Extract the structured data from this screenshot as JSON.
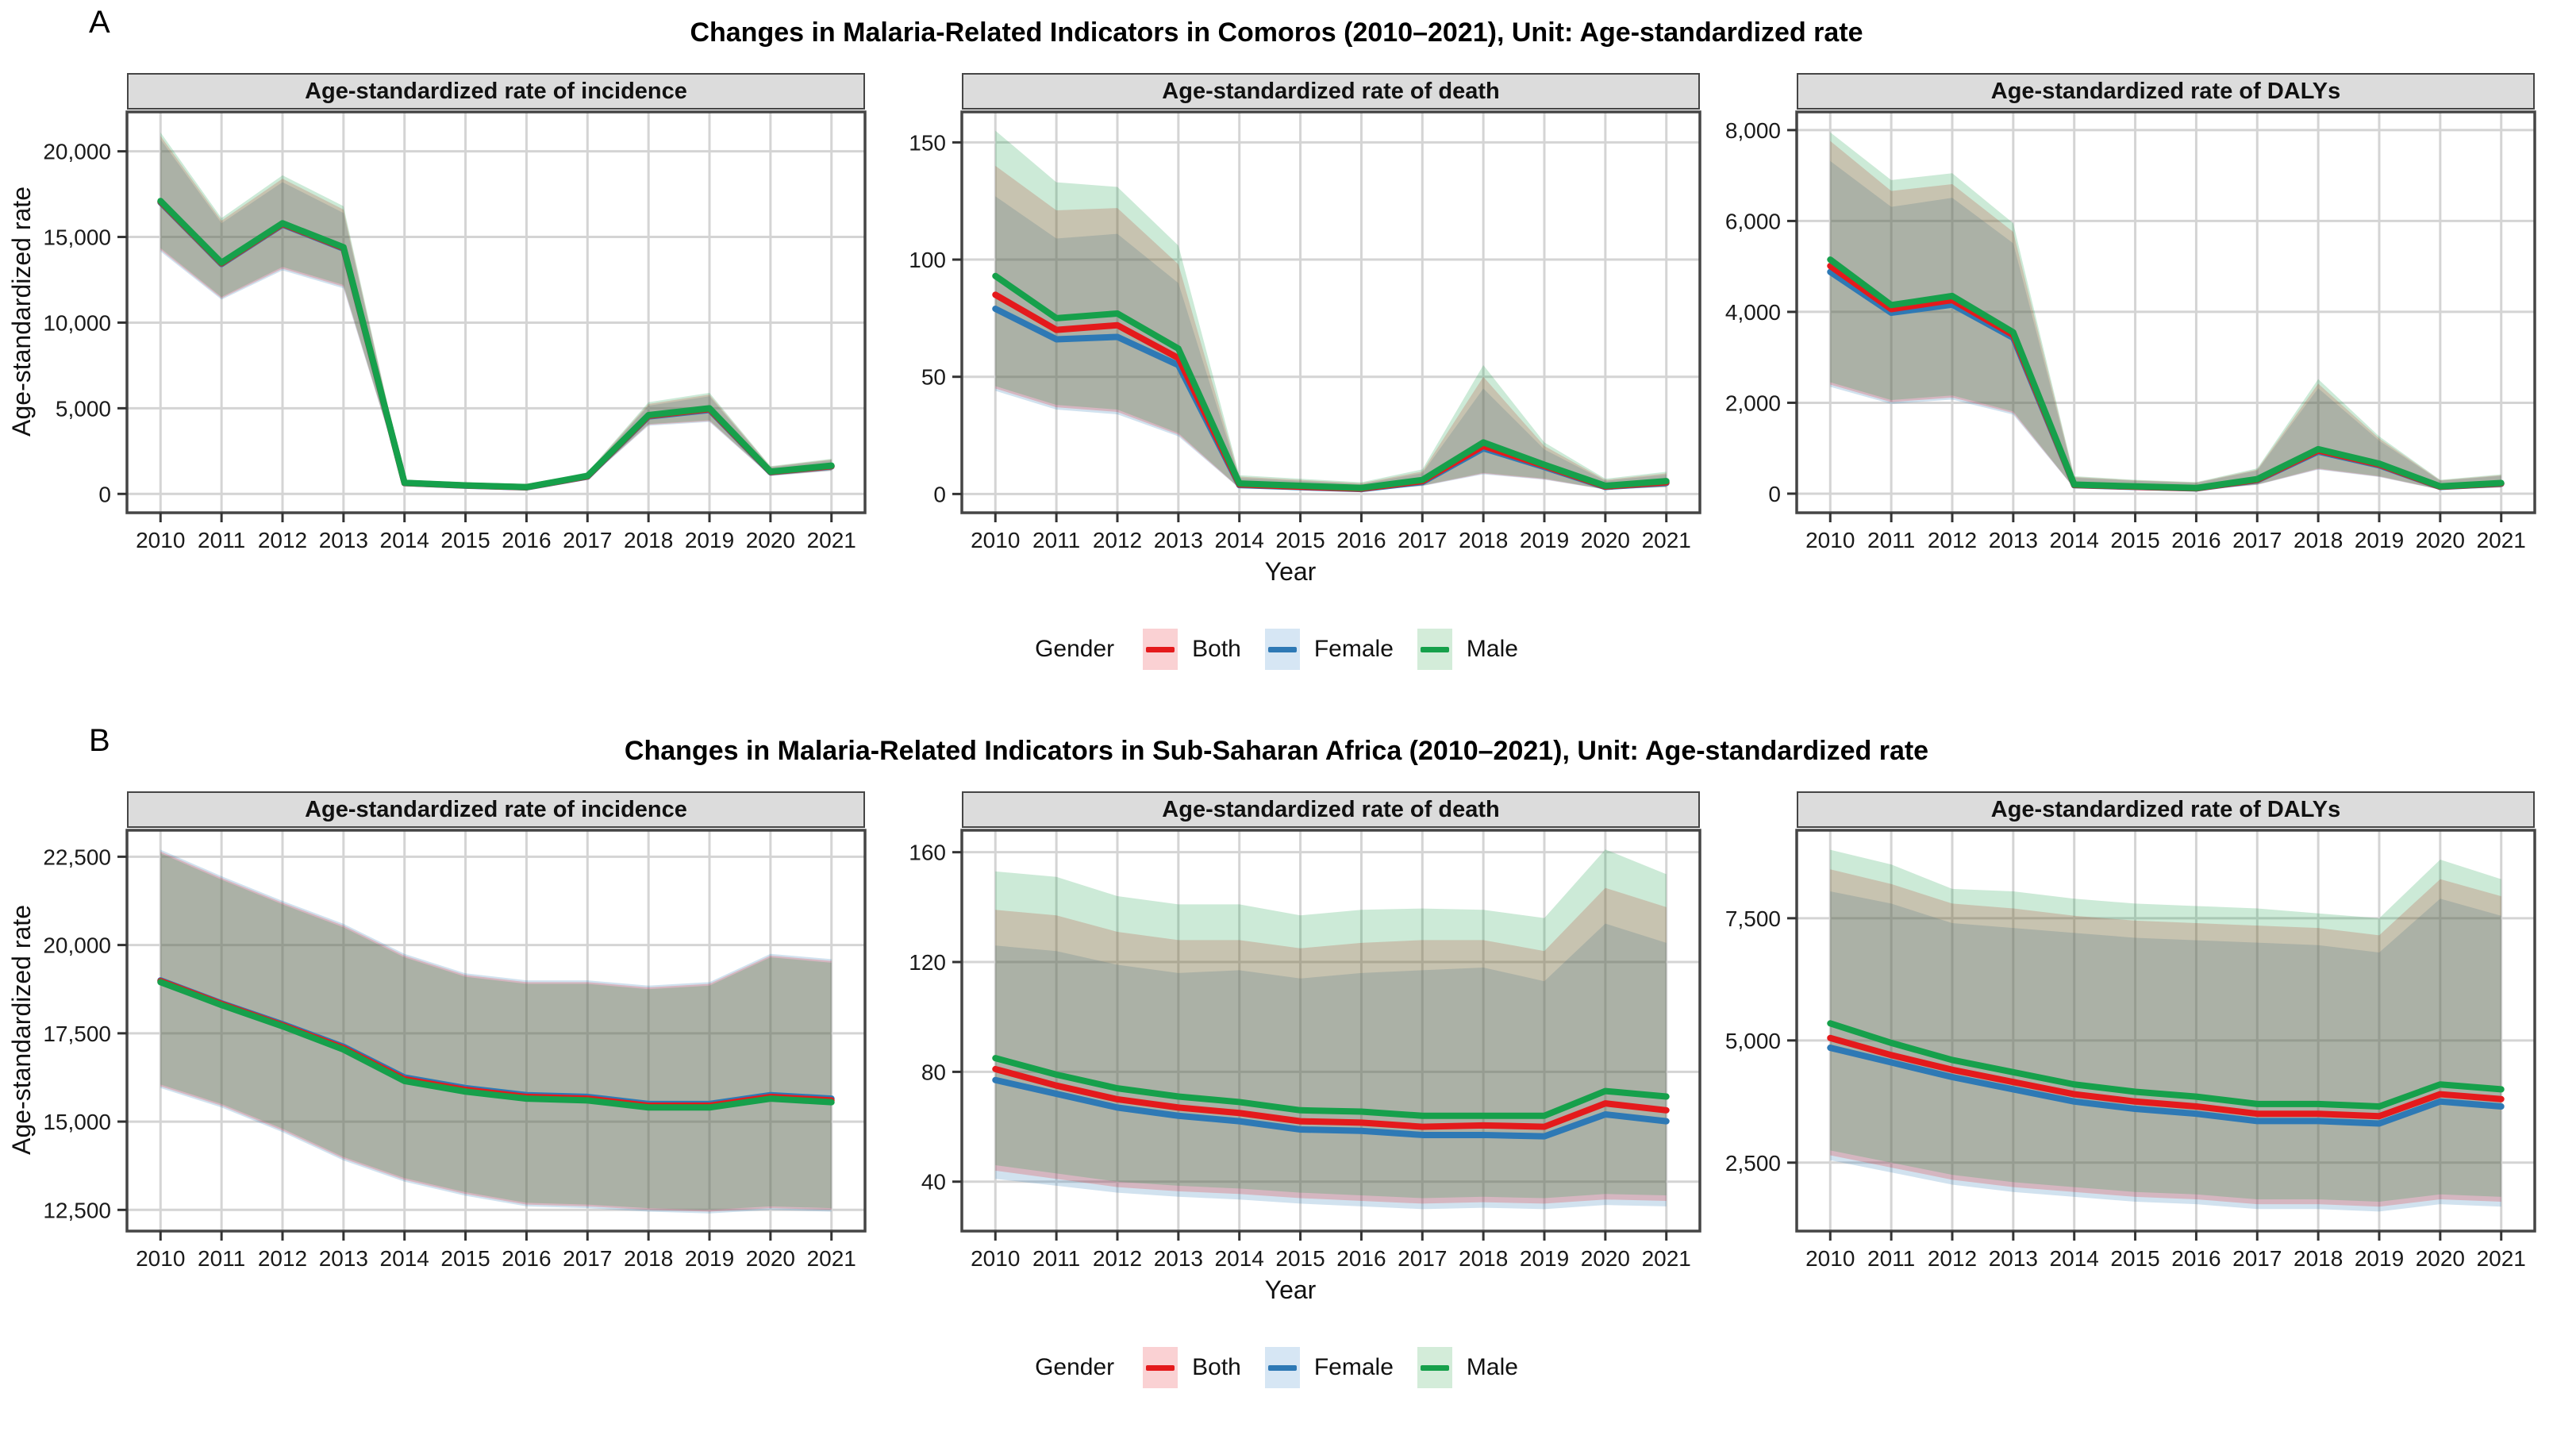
{
  "colors": {
    "both": {
      "line": "#e41a1c",
      "band": "#fad1d3"
    },
    "female": {
      "line": "#2e79b5",
      "band": "#d6e6f4"
    },
    "male": {
      "line": "#16a04b",
      "band": "#d3ecd9"
    },
    "strip_bg": "#dcdcdc",
    "grid": "#d4d4d4",
    "panel_border": "#454545"
  },
  "panels": [
    {
      "label": "A",
      "title": "Changes in Malaria-Related Indicators in Comoros (2010–2021), Unit: Age-standardized rate",
      "ylabel": "Age-standardized rate",
      "xlabel": "Year",
      "legend": {
        "title": "Gender",
        "items": [
          {
            "key": "both",
            "label": "Both"
          },
          {
            "key": "female",
            "label": "Female"
          },
          {
            "key": "male",
            "label": "Male"
          }
        ]
      }
    },
    {
      "label": "B",
      "title": "Changes in Malaria-Related Indicators in Sub-Saharan Africa (2010–2021), Unit: Age-standardized rate",
      "ylabel": "Age-standardized rate",
      "xlabel": "Year",
      "legend": {
        "title": "Gender",
        "items": [
          {
            "key": "both",
            "label": "Both"
          },
          {
            "key": "female",
            "label": "Female"
          },
          {
            "key": "male",
            "label": "Male"
          }
        ]
      }
    }
  ],
  "chart_data": [
    {
      "type": "line",
      "panel": "A",
      "title": "Age-standardized rate of incidence",
      "x": [
        2010,
        2011,
        2012,
        2013,
        2014,
        2015,
        2016,
        2017,
        2018,
        2019,
        2020,
        2021
      ],
      "xlim": [
        2009.45,
        2021.55
      ],
      "ylim": [
        -1100,
        22300
      ],
      "yticks": {
        "values": [
          0,
          5000,
          10000,
          15000,
          20000
        ],
        "labels": [
          "0",
          "5,000",
          "10,000",
          "15,000",
          "20,000"
        ]
      },
      "series": [
        {
          "name": "Female",
          "key": "female",
          "values": [
            17020,
            13420,
            15720,
            14320,
            630,
            480,
            380,
            1010,
            4520,
            4900,
            1260,
            1600
          ],
          "lower": [
            14150,
            11340,
            13050,
            12000,
            500,
            385,
            287,
            820,
            3980,
            4200,
            1040,
            1340
          ],
          "upper": [
            20700,
            15800,
            18200,
            16400,
            780,
            605,
            500,
            1210,
            5150,
            5700,
            1560,
            1970
          ]
        },
        {
          "name": "Both",
          "key": "both",
          "values": [
            17060,
            13460,
            15760,
            14360,
            640,
            490,
            390,
            1030,
            4560,
            4950,
            1280,
            1620
          ],
          "lower": [
            14250,
            11420,
            13150,
            12100,
            510,
            392,
            293,
            835,
            4030,
            4250,
            1060,
            1360
          ],
          "upper": [
            20900,
            15950,
            18400,
            16600,
            800,
            620,
            515,
            1240,
            5250,
            5800,
            1590,
            2010
          ]
        },
        {
          "name": "Male",
          "key": "male",
          "values": [
            17100,
            13500,
            15800,
            14400,
            650,
            500,
            400,
            1050,
            4600,
            5000,
            1300,
            1650
          ],
          "lower": [
            14350,
            11500,
            13250,
            12200,
            520,
            400,
            300,
            850,
            4080,
            4300,
            1080,
            1380
          ],
          "upper": [
            21100,
            16100,
            18600,
            16800,
            820,
            640,
            530,
            1270,
            5350,
            5900,
            1620,
            2050
          ]
        }
      ]
    },
    {
      "type": "line",
      "panel": "A",
      "title": "Age-standardized rate of death",
      "x": [
        2010,
        2011,
        2012,
        2013,
        2014,
        2015,
        2016,
        2017,
        2018,
        2019,
        2020,
        2021
      ],
      "xlim": [
        2009.45,
        2021.55
      ],
      "ylim": [
        -8,
        163
      ],
      "yticks": {
        "values": [
          0,
          50,
          100,
          150
        ],
        "labels": [
          "0",
          "50",
          "100",
          "150"
        ]
      },
      "series": [
        {
          "name": "Female",
          "key": "female",
          "values": [
            79,
            66,
            67,
            55,
            3.8,
            2.9,
            2.1,
            5.1,
            19.5,
            11.5,
            3,
            4.7
          ],
          "lower": [
            44,
            36,
            34,
            24.6,
            2.4,
            1.85,
            1.4,
            3.4,
            8.4,
            6.1,
            1.9,
            2.9
          ],
          "upper": [
            127,
            109,
            111,
            90,
            6.8,
            5.6,
            4.2,
            8.9,
            45,
            19,
            5.6,
            8.2
          ]
        },
        {
          "name": "Both",
          "key": "both",
          "values": [
            85,
            70,
            72,
            58,
            4.1,
            3.1,
            2.3,
            5.5,
            20.5,
            12,
            3.2,
            5
          ],
          "lower": [
            45,
            37,
            35,
            25.3,
            2.5,
            1.9,
            1.45,
            3.5,
            8.7,
            6.3,
            1.95,
            3
          ],
          "upper": [
            140,
            121,
            122,
            98,
            7.4,
            6,
            4.6,
            9.6,
            50,
            20.5,
            6,
            8.8
          ]
        },
        {
          "name": "Male",
          "key": "male",
          "values": [
            93,
            75,
            77,
            62,
            4.5,
            3.5,
            2.6,
            6,
            22,
            12.5,
            3.5,
            5.5
          ],
          "lower": [
            46,
            38,
            36,
            26,
            2.6,
            2,
            1.5,
            3.6,
            9,
            6.6,
            2,
            3.1
          ],
          "upper": [
            155,
            133,
            131,
            106,
            8,
            6.5,
            5,
            10.5,
            55,
            22,
            6.5,
            9.5
          ]
        }
      ]
    },
    {
      "type": "line",
      "panel": "A",
      "title": "Age-standardized rate of DALYs",
      "x": [
        2010,
        2011,
        2012,
        2013,
        2014,
        2015,
        2016,
        2017,
        2018,
        2019,
        2020,
        2021
      ],
      "xlim": [
        2009.45,
        2021.55
      ],
      "ylim": [
        -420,
        8400
      ],
      "yticks": {
        "values": [
          0,
          2000,
          4000,
          6000,
          8000
        ],
        "labels": [
          "0",
          "2,000",
          "4,000",
          "6,000",
          "8,000"
        ]
      },
      "series": [
        {
          "name": "Female",
          "key": "female",
          "values": [
            4880,
            3980,
            4160,
            3430,
            186,
            148,
            114,
            293,
            925,
            622,
            148,
            218
          ],
          "lower": [
            2350,
            1975,
            2070,
            1740,
            116,
            91,
            73,
            193,
            527,
            366,
            87,
            135
          ],
          "upper": [
            7320,
            6310,
            6510,
            5510,
            350,
            282,
            236,
            508,
            2320,
            1165,
            282,
            392
          ]
        },
        {
          "name": "Both",
          "key": "both",
          "values": [
            5010,
            4060,
            4260,
            3490,
            192,
            153,
            119,
            305,
            950,
            640,
            153,
            225
          ],
          "lower": [
            2400,
            2015,
            2115,
            1775,
            119,
            93,
            75,
            198,
            540,
            375,
            89,
            138
          ],
          "upper": [
            7760,
            6660,
            6810,
            5760,
            368,
            293,
            245,
            530,
            2420,
            1215,
            293,
            408
          ]
        },
        {
          "name": "Male",
          "key": "male",
          "values": [
            5150,
            4150,
            4350,
            3550,
            200,
            160,
            125,
            320,
            980,
            660,
            160,
            235
          ],
          "lower": [
            2450,
            2060,
            2160,
            1810,
            122,
            96,
            77,
            203,
            555,
            385,
            92,
            142
          ],
          "upper": [
            7950,
            6900,
            7050,
            5950,
            385,
            305,
            255,
            555,
            2520,
            1260,
            305,
            425
          ]
        }
      ]
    },
    {
      "type": "line",
      "panel": "B",
      "title": "Age-standardized rate of incidence",
      "x": [
        2010,
        2011,
        2012,
        2013,
        2014,
        2015,
        2016,
        2017,
        2018,
        2019,
        2020,
        2021
      ],
      "xlim": [
        2009.45,
        2021.55
      ],
      "ylim": [
        11900,
        23250
      ],
      "yticks": {
        "values": [
          12500,
          15000,
          17500,
          20000,
          22500
        ],
        "labels": [
          "12,500",
          "15,000",
          "17,500",
          "20,000",
          "22,500"
        ]
      },
      "series": [
        {
          "name": "Female",
          "key": "female",
          "values": [
            19000,
            18350,
            17760,
            17120,
            16250,
            15950,
            15750,
            15700,
            15500,
            15500,
            15750,
            15650
          ],
          "lower": [
            15950,
            15400,
            14700,
            13900,
            13300,
            12900,
            12600,
            12550,
            12450,
            12400,
            12500,
            12450
          ],
          "upper": [
            22700,
            21950,
            21250,
            20600,
            19750,
            19200,
            19000,
            19000,
            18850,
            18950,
            19750,
            19600
          ]
        },
        {
          "name": "Both",
          "key": "both",
          "values": [
            18980,
            18330,
            17730,
            17080,
            16200,
            15900,
            15700,
            15650,
            15450,
            15450,
            15700,
            15600
          ],
          "lower": [
            16000,
            15450,
            14750,
            13950,
            13350,
            12950,
            12650,
            12600,
            12500,
            12450,
            12550,
            12500
          ],
          "upper": [
            22650,
            21900,
            21200,
            20550,
            19700,
            19150,
            18950,
            18950,
            18800,
            18900,
            19700,
            19550
          ]
        },
        {
          "name": "Male",
          "key": "male",
          "values": [
            18950,
            18300,
            17700,
            17040,
            16150,
            15850,
            15650,
            15600,
            15400,
            15400,
            15650,
            15550
          ],
          "lower": [
            16050,
            15500,
            14800,
            14000,
            13400,
            13000,
            12700,
            12650,
            12550,
            12500,
            12600,
            12550
          ],
          "upper": [
            22600,
            21850,
            21150,
            20500,
            19650,
            19100,
            18900,
            18900,
            18750,
            18850,
            19650,
            19500
          ]
        }
      ]
    },
    {
      "type": "line",
      "panel": "B",
      "title": "Age-standardized rate of death",
      "x": [
        2010,
        2011,
        2012,
        2013,
        2014,
        2015,
        2016,
        2017,
        2018,
        2019,
        2020,
        2021
      ],
      "xlim": [
        2009.45,
        2021.55
      ],
      "ylim": [
        22,
        168
      ],
      "yticks": {
        "values": [
          40,
          80,
          120,
          160
        ],
        "labels": [
          "40",
          "80",
          "120",
          "160"
        ]
      },
      "series": [
        {
          "name": "Female",
          "key": "female",
          "values": [
            77,
            72,
            67,
            64,
            62,
            59,
            58.5,
            57,
            57,
            56.5,
            64.5,
            62
          ],
          "lower": [
            41,
            38.5,
            36,
            34.5,
            33.5,
            32,
            31,
            30,
            30.5,
            30,
            31.5,
            31
          ],
          "upper": [
            126,
            124,
            119,
            116,
            117,
            114,
            116,
            117,
            118,
            113,
            134,
            127
          ]
        },
        {
          "name": "Both",
          "key": "both",
          "values": [
            81,
            75,
            70,
            67,
            65,
            62,
            61.5,
            60,
            60.5,
            60,
            68.5,
            66
          ],
          "lower": [
            44,
            41,
            38,
            36.5,
            35.5,
            34,
            33,
            32,
            32.5,
            32,
            33.5,
            33
          ],
          "upper": [
            139,
            137,
            131,
            128,
            128,
            125,
            127,
            128,
            128,
            124,
            147,
            140
          ]
        },
        {
          "name": "Male",
          "key": "male",
          "values": [
            85,
            79,
            74,
            71,
            69,
            66,
            65.5,
            64,
            64,
            64,
            73,
            71
          ],
          "lower": [
            46,
            43,
            40,
            38.5,
            37.5,
            36,
            35,
            34,
            34.5,
            34,
            35.5,
            35
          ],
          "upper": [
            153,
            151,
            144,
            141,
            141,
            137,
            139,
            139.5,
            139,
            136,
            161,
            152
          ]
        }
      ]
    },
    {
      "type": "line",
      "panel": "B",
      "title": "Age-standardized rate of DALYs",
      "x": [
        2010,
        2011,
        2012,
        2013,
        2014,
        2015,
        2016,
        2017,
        2018,
        2019,
        2020,
        2021
      ],
      "xlim": [
        2009.45,
        2021.55
      ],
      "ylim": [
        1100,
        9300
      ],
      "yticks": {
        "values": [
          2500,
          5000,
          7500
        ],
        "labels": [
          "2,500",
          "5,000",
          "7,500"
        ]
      },
      "series": [
        {
          "name": "Female",
          "key": "female",
          "values": [
            4850,
            4550,
            4250,
            4000,
            3750,
            3600,
            3500,
            3350,
            3350,
            3300,
            3750,
            3650
          ],
          "lower": [
            2550,
            2300,
            2050,
            1900,
            1800,
            1700,
            1650,
            1550,
            1550,
            1500,
            1650,
            1600
          ],
          "upper": [
            8050,
            7800,
            7400,
            7300,
            7200,
            7100,
            7050,
            7000,
            6950,
            6800,
            7900,
            7550
          ]
        },
        {
          "name": "Both",
          "key": "both",
          "values": [
            5050,
            4700,
            4400,
            4150,
            3900,
            3750,
            3650,
            3500,
            3500,
            3450,
            3900,
            3800
          ],
          "lower": [
            2650,
            2400,
            2150,
            2000,
            1900,
            1800,
            1750,
            1650,
            1650,
            1600,
            1750,
            1700
          ],
          "upper": [
            8500,
            8200,
            7800,
            7700,
            7550,
            7450,
            7400,
            7350,
            7300,
            7150,
            8300,
            7950
          ]
        },
        {
          "name": "Male",
          "key": "male",
          "values": [
            5350,
            4950,
            4600,
            4350,
            4100,
            3950,
            3850,
            3700,
            3700,
            3650,
            4100,
            4000
          ],
          "lower": [
            2750,
            2500,
            2250,
            2100,
            2000,
            1900,
            1850,
            1750,
            1750,
            1700,
            1850,
            1800
          ],
          "upper": [
            8900,
            8600,
            8100,
            8050,
            7900,
            7800,
            7750,
            7700,
            7600,
            7500,
            8700,
            8300
          ]
        }
      ]
    }
  ]
}
